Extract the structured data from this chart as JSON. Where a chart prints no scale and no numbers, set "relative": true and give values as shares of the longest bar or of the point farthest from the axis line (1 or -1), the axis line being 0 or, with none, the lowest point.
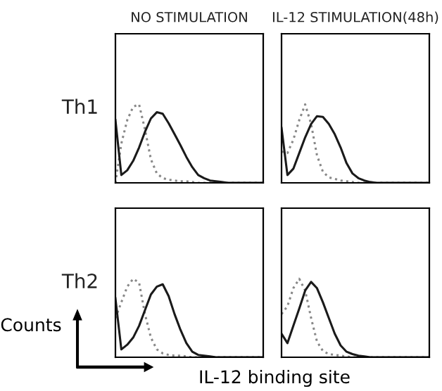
{
  "chart_data": [
    {
      "type": "line",
      "title": "NO STIMULATION",
      "ylabel": "Th1",
      "relative": true,
      "categories": [
        null,
        null,
        null,
        null,
        null,
        null,
        null,
        null,
        null,
        null,
        null,
        null,
        null,
        null,
        null,
        null,
        null,
        null,
        null,
        null,
        null,
        null,
        null,
        null,
        null,
        null
      ],
      "series": [
        {
          "color": "#888888",
          "line_style": "dotted",
          "values": [
            0,
            0.5,
            0.8,
            0.97,
            1.0,
            0.68,
            0.3,
            0.12,
            0.06,
            0.04,
            0.03,
            0.02,
            0.02,
            0.01,
            0,
            0,
            0,
            0,
            0,
            0,
            0,
            0,
            0,
            0,
            0,
            0
          ]
        },
        {
          "color": "#1a1a1a",
          "line_style": "solid",
          "values": [
            0.8,
            0.1,
            0.16,
            0.28,
            0.45,
            0.65,
            0.82,
            0.9,
            0.88,
            0.76,
            0.62,
            0.48,
            0.33,
            0.2,
            0.1,
            0.06,
            0.03,
            0.02,
            0.01,
            0,
            0,
            0,
            0,
            0,
            0,
            0
          ]
        }
      ]
    },
    {
      "type": "line",
      "title": "IL-12 STIMULATION(48h)",
      "relative": true,
      "categories": [
        null,
        null,
        null,
        null,
        null,
        null,
        null,
        null,
        null,
        null,
        null,
        null,
        null,
        null,
        null,
        null,
        null,
        null,
        null,
        null,
        null,
        null,
        null,
        null,
        null,
        null
      ],
      "series": [
        {
          "color": "#888888",
          "line_style": "dotted",
          "values": [
            0.4,
            0.38,
            0.55,
            0.8,
            1.0,
            0.75,
            0.35,
            0.14,
            0.07,
            0.05,
            0.03,
            0.02,
            0.01,
            0,
            0,
            0,
            0,
            0,
            0,
            0,
            0,
            0,
            0,
            0,
            0,
            0
          ]
        },
        {
          "color": "#1a1a1a",
          "line_style": "solid",
          "values": [
            0.7,
            0.1,
            0.18,
            0.38,
            0.58,
            0.75,
            0.85,
            0.84,
            0.75,
            0.62,
            0.45,
            0.25,
            0.12,
            0.06,
            0.03,
            0.01,
            0,
            0,
            0,
            0,
            0,
            0,
            0,
            0,
            0,
            0
          ]
        }
      ]
    },
    {
      "type": "line",
      "ylabel": "Th2",
      "relative": true,
      "annotations": [
        "Counts",
        "IL-12 binding site"
      ],
      "categories": [
        null,
        null,
        null,
        null,
        null,
        null,
        null,
        null,
        null,
        null,
        null,
        null,
        null,
        null,
        null,
        null,
        null,
        null,
        null,
        null,
        null,
        null,
        null,
        null,
        null,
        null
      ],
      "series": [
        {
          "color": "#888888",
          "line_style": "dotted",
          "values": [
            0.5,
            0.7,
            0.9,
            1.0,
            0.95,
            0.55,
            0.25,
            0.1,
            0.05,
            0.03,
            0.02,
            0.02,
            0.01,
            0,
            0,
            0,
            0,
            0,
            0,
            0,
            0,
            0,
            0,
            0,
            0,
            0
          ]
        },
        {
          "color": "#1a1a1a",
          "line_style": "solid",
          "values": [
            0.75,
            0.1,
            0.16,
            0.25,
            0.4,
            0.6,
            0.8,
            0.9,
            0.93,
            0.78,
            0.55,
            0.35,
            0.18,
            0.07,
            0.03,
            0.02,
            0.01,
            0,
            0,
            0,
            0,
            0,
            0,
            0,
            0,
            0
          ]
        }
      ]
    },
    {
      "type": "line",
      "relative": true,
      "categories": [
        null,
        null,
        null,
        null,
        null,
        null,
        null,
        null,
        null,
        null,
        null,
        null,
        null,
        null,
        null,
        null,
        null,
        null,
        null,
        null,
        null,
        null,
        null,
        null,
        null,
        null
      ],
      "series": [
        {
          "color": "#888888",
          "line_style": "dotted",
          "values": [
            0.55,
            0.65,
            0.88,
            1.0,
            0.85,
            0.5,
            0.2,
            0.08,
            0.04,
            0.03,
            0.02,
            0.01,
            0,
            0,
            0,
            0,
            0,
            0,
            0,
            0,
            0,
            0,
            0,
            0,
            0,
            0
          ]
        },
        {
          "color": "#1a1a1a",
          "line_style": "solid",
          "values": [
            0.3,
            0.18,
            0.4,
            0.62,
            0.85,
            0.96,
            0.88,
            0.7,
            0.5,
            0.3,
            0.15,
            0.07,
            0.04,
            0.02,
            0.01,
            0,
            0,
            0,
            0,
            0,
            0,
            0,
            0,
            0,
            0,
            0
          ]
        }
      ]
    }
  ]
}
